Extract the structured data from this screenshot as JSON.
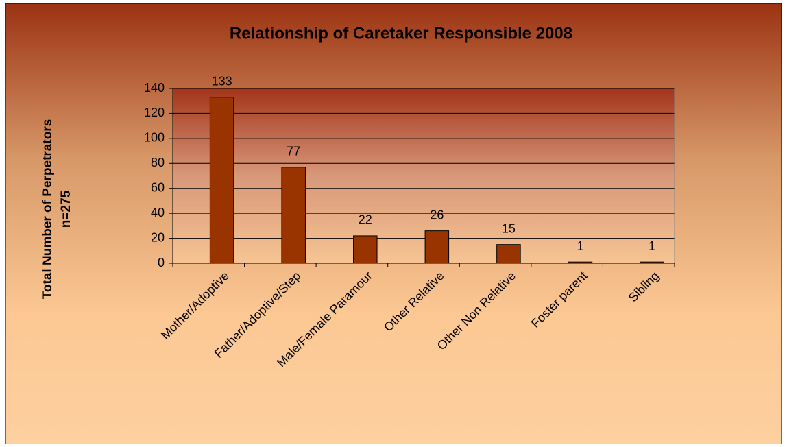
{
  "chart_data": {
    "type": "bar",
    "title": "Relationship of Caretaker Responsible 2008",
    "ylabel": [
      "Total Number of Perpetrators",
      "n=275"
    ],
    "categories": [
      "Mother/Adoptive",
      "Father/Adoptive/Step",
      "Male/Female Paramour",
      "Other Relative",
      "Other Non Relative",
      "Foster parent",
      "Sibling"
    ],
    "values": [
      133,
      77,
      22,
      26,
      15,
      1,
      1
    ],
    "color": "#993300",
    "ylim": [
      0,
      140
    ],
    "yticks": [
      0,
      20,
      40,
      60,
      80,
      100,
      120,
      140
    ],
    "grid": true
  }
}
